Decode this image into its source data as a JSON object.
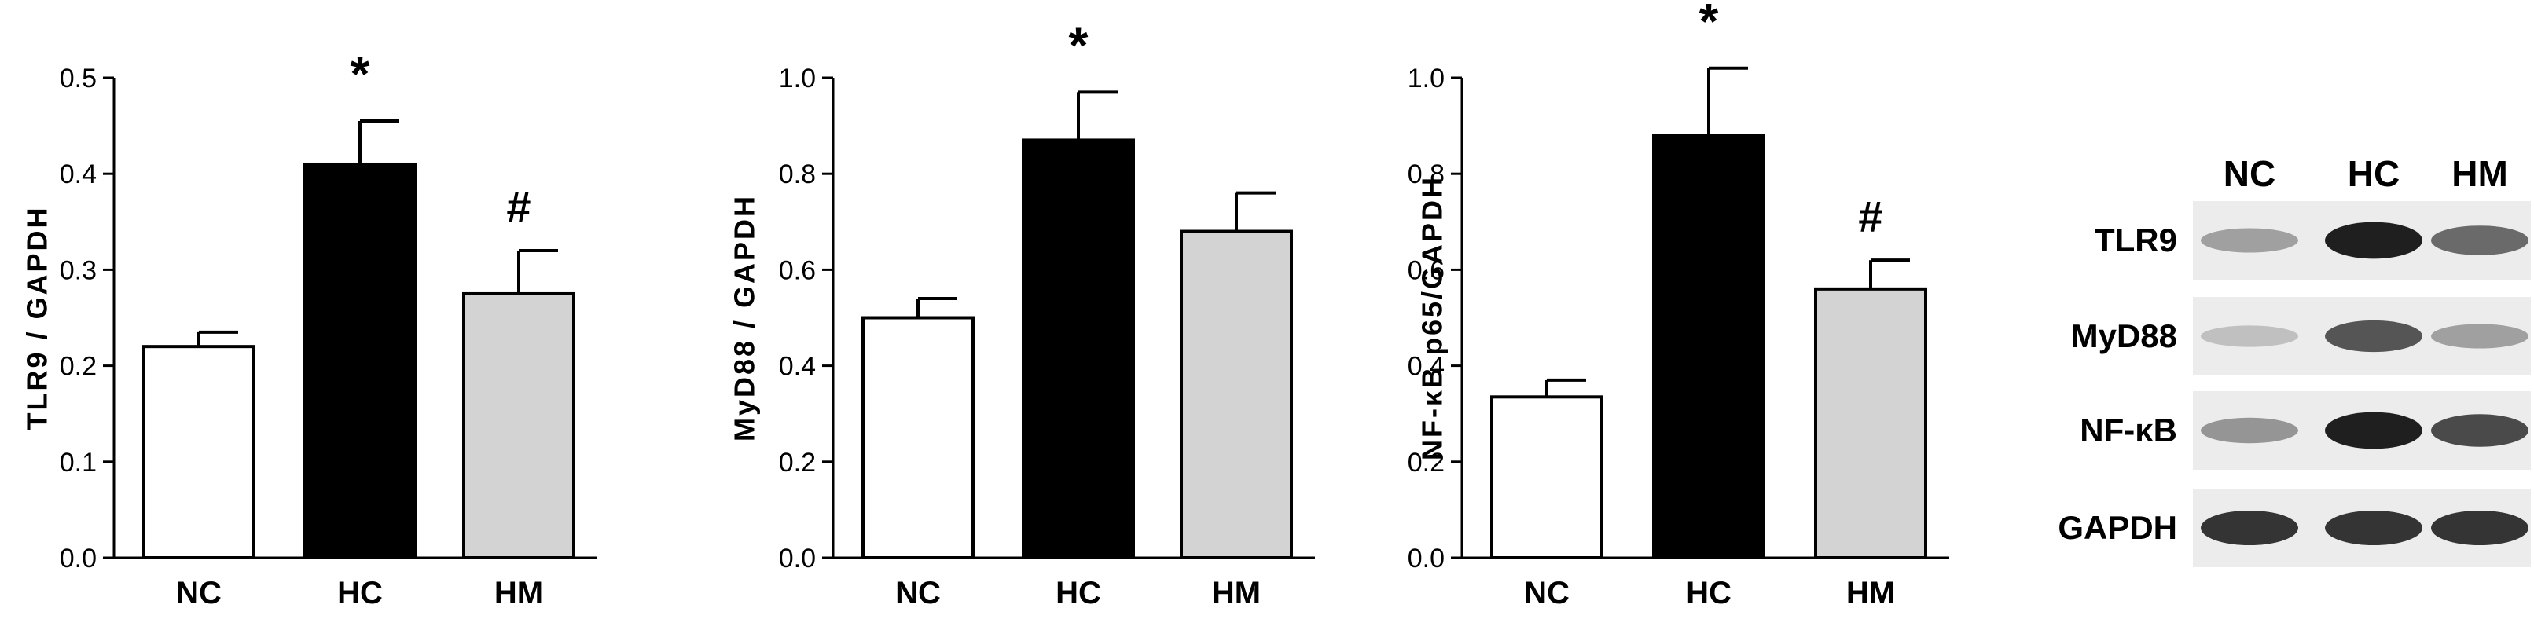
{
  "chart_data": [
    {
      "type": "bar",
      "ylabel": "TLR9 / GAPDH",
      "categories": [
        "NC",
        "HC",
        "HM"
      ],
      "values": [
        0.22,
        0.41,
        0.275
      ],
      "errors": [
        0.015,
        0.045,
        0.045
      ],
      "fills": [
        "#ffffff",
        "#000000",
        "#d3d3d3"
      ],
      "ylim": [
        0,
        0.5
      ],
      "yticks": [
        "0.0",
        "0.1",
        "0.2",
        "0.3",
        "0.4",
        "0.5"
      ],
      "markers": [
        "",
        "*",
        "#"
      ]
    },
    {
      "type": "bar",
      "ylabel": "MyD88 / GAPDH",
      "categories": [
        "NC",
        "HC",
        "HM"
      ],
      "values": [
        0.5,
        0.87,
        0.68
      ],
      "errors": [
        0.04,
        0.1,
        0.08
      ],
      "fills": [
        "#ffffff",
        "#000000",
        "#d3d3d3"
      ],
      "ylim": [
        0,
        1.0
      ],
      "yticks": [
        "0.0",
        "0.2",
        "0.4",
        "0.6",
        "0.8",
        "1.0"
      ],
      "markers": [
        "",
        "*",
        ""
      ]
    },
    {
      "type": "bar",
      "ylabel": "NF-κB p65/GAPDH",
      "categories": [
        "NC",
        "HC",
        "HM"
      ],
      "values": [
        0.335,
        0.88,
        0.56
      ],
      "errors": [
        0.035,
        0.14,
        0.06
      ],
      "fills": [
        "#ffffff",
        "#000000",
        "#d3d3d3"
      ],
      "ylim": [
        0,
        1.0
      ],
      "yticks": [
        "0.0",
        "0.2",
        "0.4",
        "0.6",
        "0.8",
        "1.0"
      ],
      "markers": [
        "",
        "*",
        "#"
      ]
    }
  ],
  "blot": {
    "lanes": [
      "NC",
      "HC",
      "HM"
    ],
    "rows": [
      {
        "label": "TLR9",
        "intensity": [
          0.35,
          0.95,
          0.6
        ]
      },
      {
        "label": "MyD88",
        "intensity": [
          0.2,
          0.7,
          0.35
        ]
      },
      {
        "label": "NF-κB",
        "intensity": [
          0.4,
          0.95,
          0.75
        ]
      },
      {
        "label": "GAPDH",
        "intensity": [
          0.85,
          0.85,
          0.85
        ]
      }
    ]
  }
}
